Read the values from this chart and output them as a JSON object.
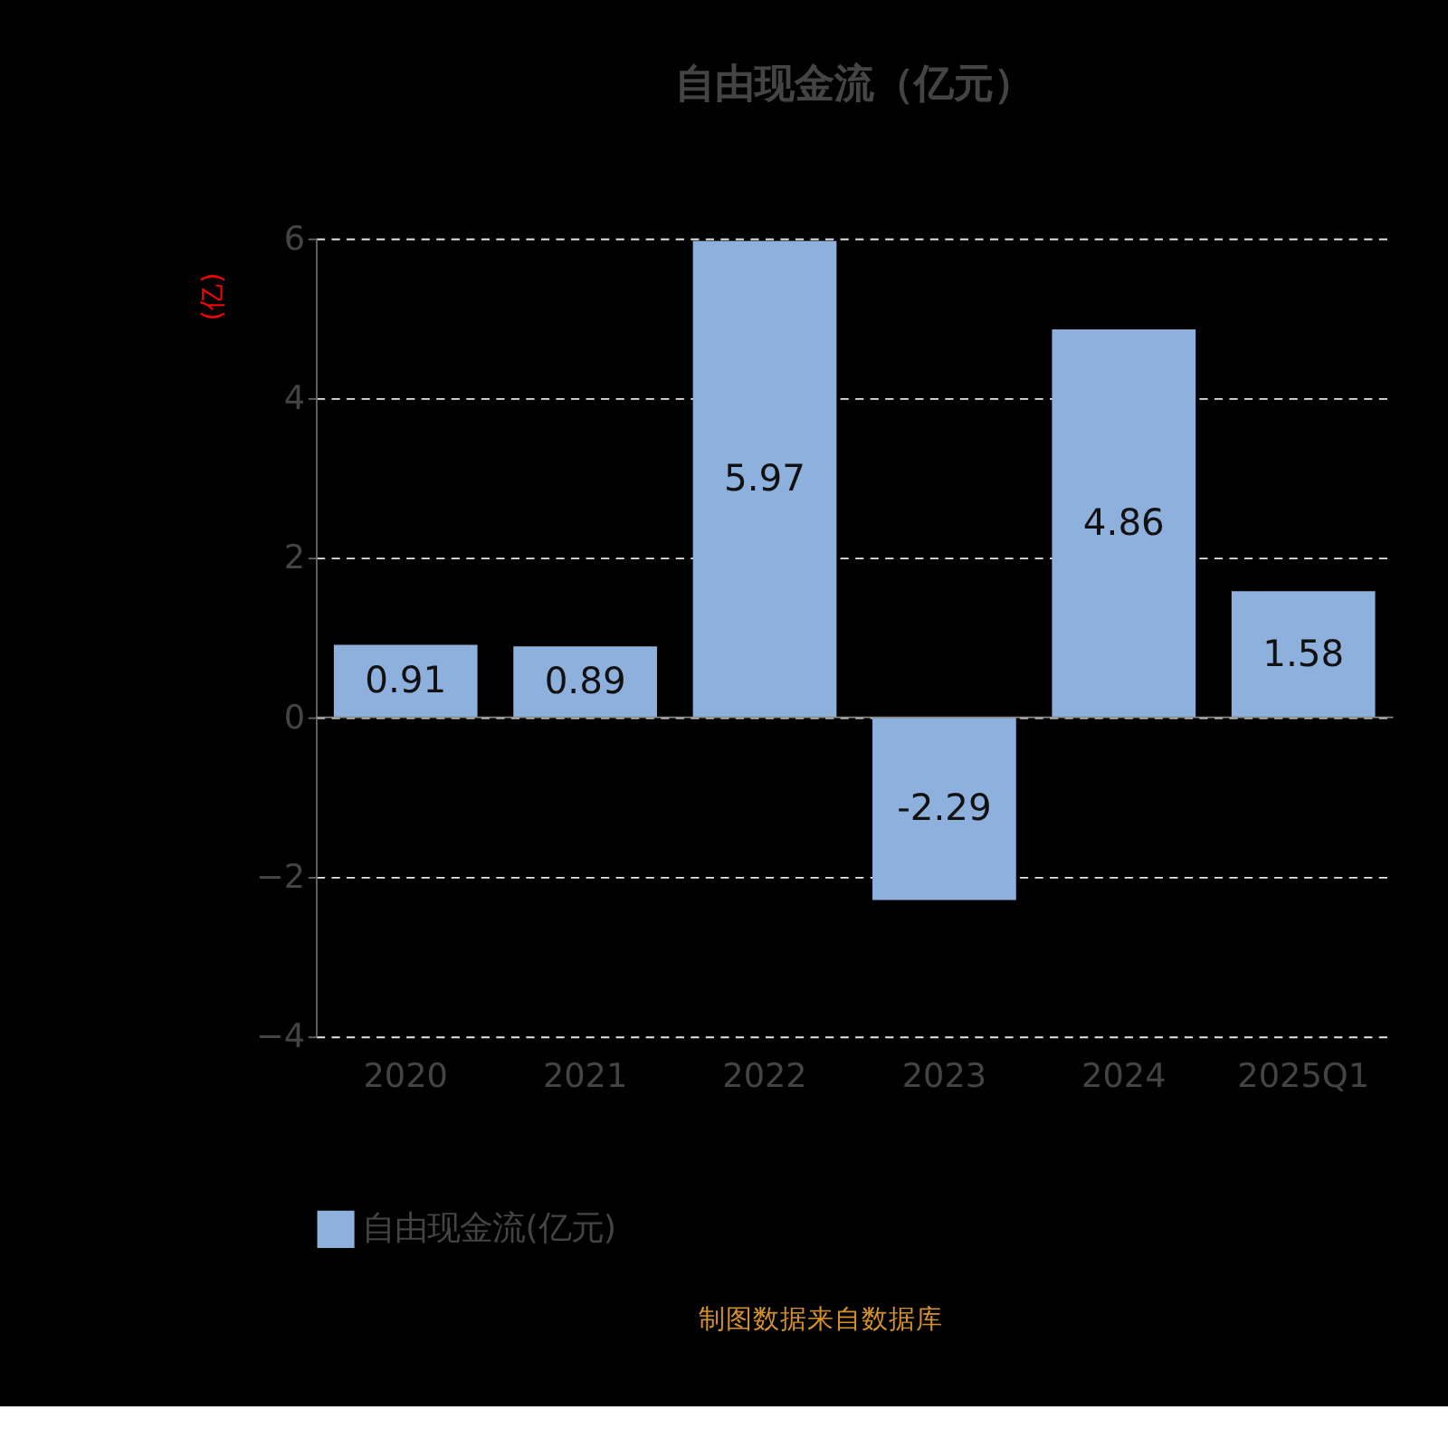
{
  "chart_data": {
    "type": "bar",
    "title": "自由现金流（亿元）",
    "ylabel": "(亿)",
    "categories": [
      "2020",
      "2021",
      "2022",
      "2023",
      "2024",
      "2025Q1"
    ],
    "series": [
      {
        "name": "自由现金流(亿元)",
        "color": "#8eb0dc",
        "values": [
          0.91,
          0.89,
          5.97,
          -2.29,
          4.86,
          1.58
        ]
      }
    ],
    "ylim": [
      -4,
      6
    ],
    "yticks": [
      -4,
      -2,
      0,
      2,
      4,
      6
    ],
    "grid": "y",
    "legend": "bottom",
    "data_labels": true,
    "annotations": [
      "制图数据来自数据库"
    ]
  }
}
